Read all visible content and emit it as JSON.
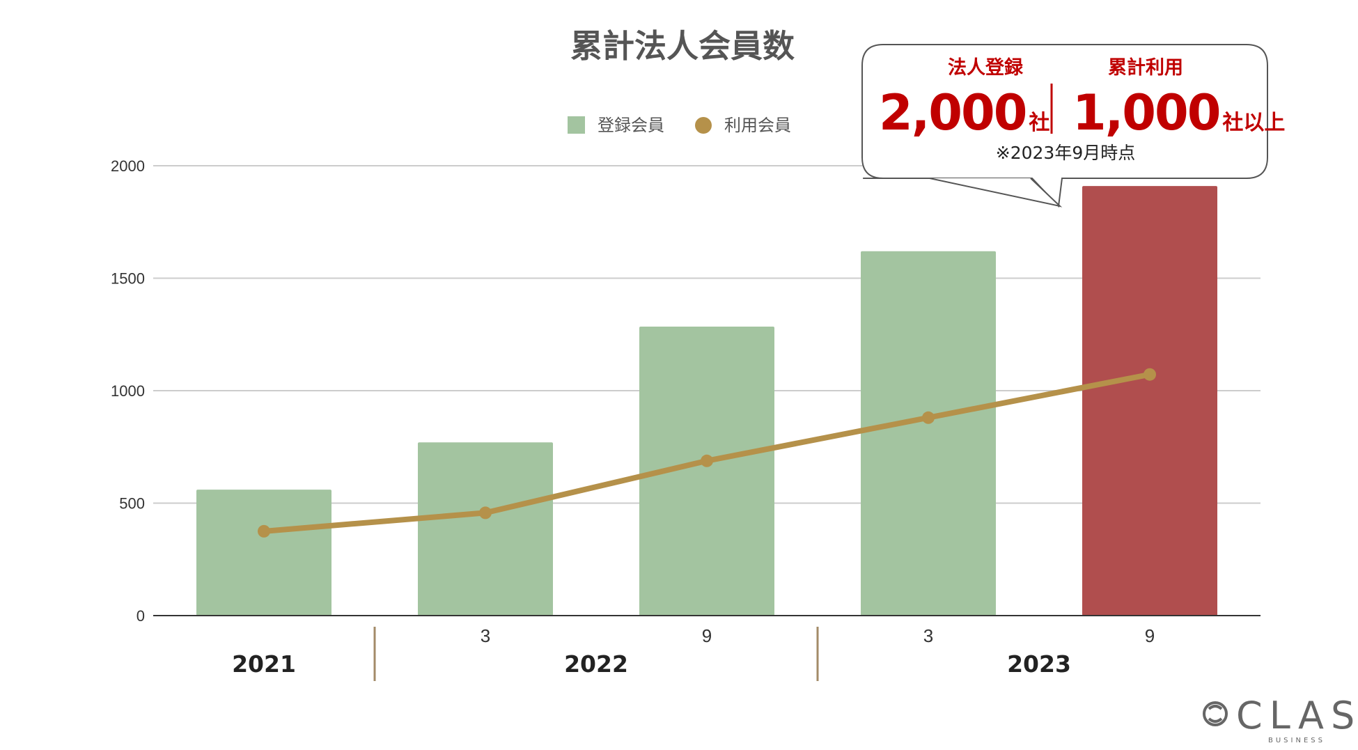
{
  "chart_data": {
    "type": "bar",
    "title": "累計法人会員数",
    "categories": [
      "",
      "3",
      "9",
      "3",
      "9"
    ],
    "year_groups": [
      {
        "label": "2021",
        "span": [
          0,
          0
        ]
      },
      {
        "label": "2022",
        "span": [
          1,
          2
        ]
      },
      {
        "label": "2023",
        "span": [
          3,
          4
        ]
      }
    ],
    "series": [
      {
        "name": "登録会員",
        "type": "bar",
        "values": [
          560,
          770,
          1285,
          1620,
          1910
        ],
        "color": "#a3c4a0",
        "highlight_color": "#b04e4e",
        "highlight_index": 4
      },
      {
        "name": "利用会員",
        "type": "line",
        "values": [
          375,
          457,
          688,
          880,
          1072
        ],
        "color": "#b5914a"
      }
    ],
    "ylim": [
      0,
      2000
    ],
    "yticks": [
      0,
      500,
      1000,
      1500,
      2000
    ],
    "grid": true,
    "legend": "top-center"
  },
  "callout": {
    "left_heading": "法人登録",
    "left_value": "2,000",
    "left_unit": "社",
    "right_heading": "累計利用",
    "right_value": "1,000",
    "right_unit": "社以上",
    "note": "※2023年9月時点"
  },
  "logo": {
    "name": "CLAS",
    "sub": "BUSINESS"
  },
  "colors": {
    "accent_red": "#c00000",
    "year_divider": "#a38b68",
    "grid": "#cccccc"
  }
}
